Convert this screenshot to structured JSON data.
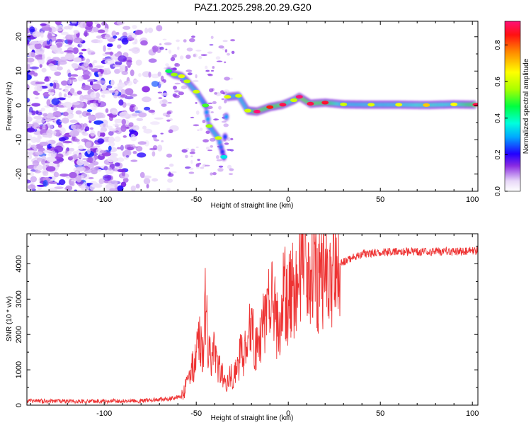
{
  "title": "PAZ1.2025.298.20.29.G20",
  "chart_data": [
    {
      "type": "heatmap",
      "title": "PAZ1.2025.298.20.29.G20",
      "xlabel": "Height of straight line (km)",
      "ylabel": "Frequency (Hz)",
      "xlim": [
        -142,
        103
      ],
      "ylim": [
        -25,
        24.5
      ],
      "xticks": [
        -100,
        -50,
        0,
        50,
        100
      ],
      "yticks": [
        -20,
        -10,
        0,
        10,
        20
      ],
      "colorbar": {
        "label": "Normalized spectral amplitude",
        "range": [
          0.0,
          0.93
        ],
        "ticks": [
          0.0,
          0.2,
          0.4,
          0.6,
          0.8
        ],
        "tick_labels": [
          "0.0",
          "0.2",
          "0.4",
          "0.6",
          "0.8"
        ]
      },
      "ridge": [
        {
          "x": -65,
          "f": 10,
          "a": 0.45
        },
        {
          "x": -62,
          "f": 9,
          "a": 0.55
        },
        {
          "x": -58,
          "f": 8.5,
          "a": 0.62
        },
        {
          "x": -55,
          "f": 7,
          "a": 0.58
        },
        {
          "x": -50,
          "f": 4,
          "a": 0.6
        },
        {
          "x": -45,
          "f": 0,
          "a": 0.5
        },
        {
          "x": -43,
          "f": -6,
          "a": 0.55
        },
        {
          "x": -38,
          "f": -9.5,
          "a": 0.6
        },
        {
          "x": -35,
          "f": -15,
          "a": 0.35
        },
        {
          "x": -33,
          "f": 2.5,
          "a": 0.62
        },
        {
          "x": -27,
          "f": 2.8,
          "a": 0.6
        },
        {
          "x": -22,
          "f": -1.5,
          "a": 0.6
        },
        {
          "x": -17,
          "f": -1.8,
          "a": 0.95
        },
        {
          "x": -10,
          "f": -0.5,
          "a": 0.85
        },
        {
          "x": -3,
          "f": 0.2,
          "a": 0.9
        },
        {
          "x": 3,
          "f": 1.5,
          "a": 0.6
        },
        {
          "x": 6,
          "f": 2.5,
          "a": 0.95
        },
        {
          "x": 12,
          "f": 0.5,
          "a": 0.9
        },
        {
          "x": 20,
          "f": 0.8,
          "a": 0.88
        },
        {
          "x": 30,
          "f": 0.3,
          "a": 0.6
        },
        {
          "x": 45,
          "f": 0.2,
          "a": 0.62
        },
        {
          "x": 60,
          "f": 0.2,
          "a": 0.63
        },
        {
          "x": 75,
          "f": 0.1,
          "a": 0.7
        },
        {
          "x": 90,
          "f": 0.3,
          "a": 0.65
        },
        {
          "x": 102,
          "f": 0.2,
          "a": 0.9
        }
      ]
    },
    {
      "type": "line",
      "xlabel": "Height of straight line (km)",
      "ylabel": "SNR (10 * v/v)",
      "xlim": [
        -142,
        103
      ],
      "ylim": [
        0,
        4850
      ],
      "xticks": [
        -100,
        -50,
        0,
        50,
        100
      ],
      "yticks": [
        0,
        1000,
        2000,
        3000,
        4000
      ],
      "color": "#ee3333",
      "series": [
        {
          "name": "SNR",
          "x": [
            -142,
            -120,
            -100,
            -80,
            -65,
            -58,
            -54,
            -52,
            -50,
            -48,
            -46,
            -45,
            -44,
            -42,
            -40,
            -38,
            -36,
            -34,
            -32,
            -30,
            -28,
            -26,
            -24,
            -22,
            -20,
            -18,
            -16,
            -14,
            -12,
            -10,
            -8,
            -6,
            -4,
            -2,
            0,
            2,
            4,
            6,
            8,
            9,
            10,
            12,
            15,
            18,
            21,
            24,
            27,
            30,
            35,
            40,
            50,
            60,
            70,
            80,
            90,
            100,
            103
          ],
          "y": [
            120,
            110,
            115,
            120,
            180,
            250,
            700,
            1100,
            1400,
            2000,
            1500,
            3000,
            2000,
            1200,
            1600,
            1000,
            900,
            600,
            900,
            800,
            1000,
            1400,
            1500,
            1800,
            2400,
            1500,
            1600,
            2200,
            2600,
            2900,
            2800,
            2200,
            2700,
            3200,
            3000,
            3300,
            3100,
            3600,
            3800,
            4800,
            3400,
            3900,
            3600,
            3500,
            3650,
            3700,
            3900,
            4050,
            4200,
            4280,
            4320,
            4350,
            4330,
            4340,
            4350,
            4360,
            4370
          ]
        }
      ]
    }
  ]
}
